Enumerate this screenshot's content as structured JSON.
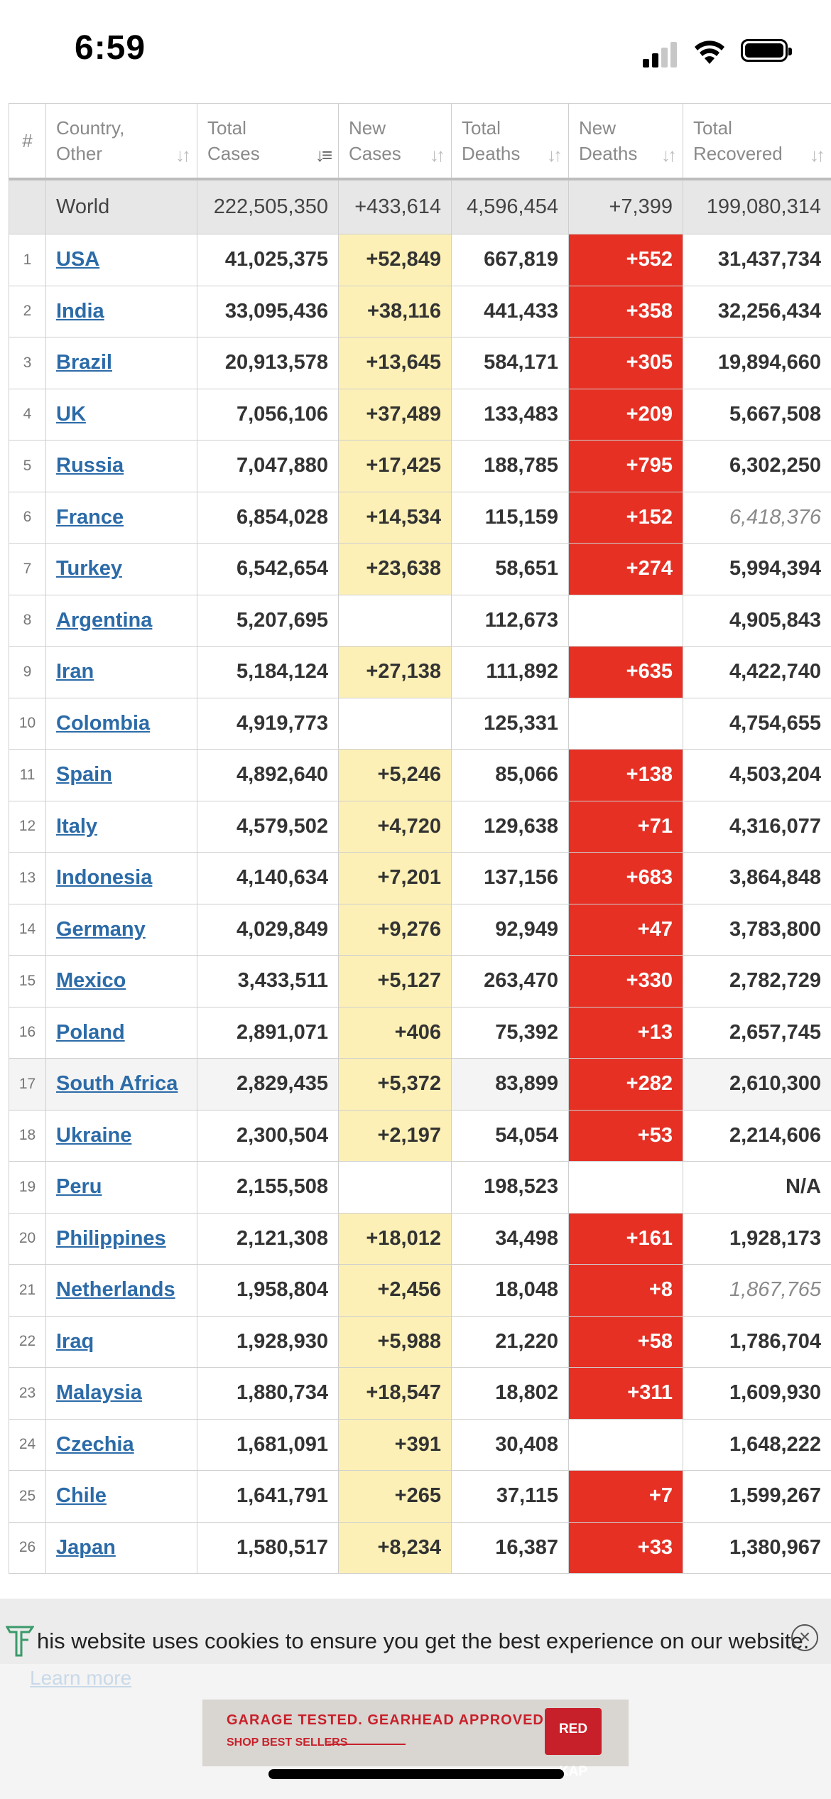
{
  "status_bar": {
    "time": "6:59"
  },
  "table": {
    "headers": {
      "hash": "#",
      "country": [
        "Country,",
        "Other"
      ],
      "total_cases": [
        "Total",
        "Cases"
      ],
      "new_cases": [
        "New",
        "Cases"
      ],
      "total_deaths": [
        "Total",
        "Deaths"
      ],
      "new_deaths": [
        "New",
        "Deaths"
      ],
      "total_recovered": [
        "Total",
        "Recovered"
      ]
    },
    "world": {
      "name": "World",
      "total_cases": "222,505,350",
      "new_cases": "+433,614",
      "total_deaths": "4,596,454",
      "new_deaths": "+7,399",
      "total_recovered": "199,080,314"
    },
    "rows": [
      {
        "rank": "1",
        "country": "USA",
        "total_cases": "41,025,375",
        "new_cases": "+52,849",
        "total_deaths": "667,819",
        "new_deaths": "+552",
        "total_recovered": "31,437,734"
      },
      {
        "rank": "2",
        "country": "India",
        "total_cases": "33,095,436",
        "new_cases": "+38,116",
        "total_deaths": "441,433",
        "new_deaths": "+358",
        "total_recovered": "32,256,434"
      },
      {
        "rank": "3",
        "country": "Brazil",
        "total_cases": "20,913,578",
        "new_cases": "+13,645",
        "total_deaths": "584,171",
        "new_deaths": "+305",
        "total_recovered": "19,894,660"
      },
      {
        "rank": "4",
        "country": "UK",
        "total_cases": "7,056,106",
        "new_cases": "+37,489",
        "total_deaths": "133,483",
        "new_deaths": "+209",
        "total_recovered": "5,667,508"
      },
      {
        "rank": "5",
        "country": "Russia",
        "total_cases": "7,047,880",
        "new_cases": "+17,425",
        "total_deaths": "188,785",
        "new_deaths": "+795",
        "total_recovered": "6,302,250"
      },
      {
        "rank": "6",
        "country": "France",
        "total_cases": "6,854,028",
        "new_cases": "+14,534",
        "total_deaths": "115,159",
        "new_deaths": "+152",
        "total_recovered": "6,418,376",
        "recovered_italic": true
      },
      {
        "rank": "7",
        "country": "Turkey",
        "total_cases": "6,542,654",
        "new_cases": "+23,638",
        "total_deaths": "58,651",
        "new_deaths": "+274",
        "total_recovered": "5,994,394"
      },
      {
        "rank": "8",
        "country": "Argentina",
        "total_cases": "5,207,695",
        "new_cases": "",
        "total_deaths": "112,673",
        "new_deaths": "",
        "total_recovered": "4,905,843"
      },
      {
        "rank": "9",
        "country": "Iran",
        "total_cases": "5,184,124",
        "new_cases": "+27,138",
        "total_deaths": "111,892",
        "new_deaths": "+635",
        "total_recovered": "4,422,740"
      },
      {
        "rank": "10",
        "country": "Colombia",
        "total_cases": "4,919,773",
        "new_cases": "",
        "total_deaths": "125,331",
        "new_deaths": "",
        "total_recovered": "4,754,655"
      },
      {
        "rank": "11",
        "country": "Spain",
        "total_cases": "4,892,640",
        "new_cases": "+5,246",
        "total_deaths": "85,066",
        "new_deaths": "+138",
        "total_recovered": "4,503,204"
      },
      {
        "rank": "12",
        "country": "Italy",
        "total_cases": "4,579,502",
        "new_cases": "+4,720",
        "total_deaths": "129,638",
        "new_deaths": "+71",
        "total_recovered": "4,316,077"
      },
      {
        "rank": "13",
        "country": "Indonesia",
        "total_cases": "4,140,634",
        "new_cases": "+7,201",
        "total_deaths": "137,156",
        "new_deaths": "+683",
        "total_recovered": "3,864,848"
      },
      {
        "rank": "14",
        "country": "Germany",
        "total_cases": "4,029,849",
        "new_cases": "+9,276",
        "total_deaths": "92,949",
        "new_deaths": "+47",
        "total_recovered": "3,783,800"
      },
      {
        "rank": "15",
        "country": "Mexico",
        "total_cases": "3,433,511",
        "new_cases": "+5,127",
        "total_deaths": "263,470",
        "new_deaths": "+330",
        "total_recovered": "2,782,729"
      },
      {
        "rank": "16",
        "country": "Poland",
        "total_cases": "2,891,071",
        "new_cases": "+406",
        "total_deaths": "75,392",
        "new_deaths": "+13",
        "total_recovered": "2,657,745"
      },
      {
        "rank": "17",
        "country": "South Africa",
        "total_cases": "2,829,435",
        "new_cases": "+5,372",
        "total_deaths": "83,899",
        "new_deaths": "+282",
        "total_recovered": "2,610,300",
        "shaded": true
      },
      {
        "rank": "18",
        "country": "Ukraine",
        "total_cases": "2,300,504",
        "new_cases": "+2,197",
        "total_deaths": "54,054",
        "new_deaths": "+53",
        "total_recovered": "2,214,606"
      },
      {
        "rank": "19",
        "country": "Peru",
        "total_cases": "2,155,508",
        "new_cases": "",
        "total_deaths": "198,523",
        "new_deaths": "",
        "total_recovered": "N/A"
      },
      {
        "rank": "20",
        "country": "Philippines",
        "total_cases": "2,121,308",
        "new_cases": "+18,012",
        "total_deaths": "34,498",
        "new_deaths": "+161",
        "total_recovered": "1,928,173"
      },
      {
        "rank": "21",
        "country": "Netherlands",
        "total_cases": "1,958,804",
        "new_cases": "+2,456",
        "total_deaths": "18,048",
        "new_deaths": "+8",
        "total_recovered": "1,867,765",
        "recovered_italic": true
      },
      {
        "rank": "22",
        "country": "Iraq",
        "total_cases": "1,928,930",
        "new_cases": "+5,988",
        "total_deaths": "21,220",
        "new_deaths": "+58",
        "total_recovered": "1,786,704"
      },
      {
        "rank": "23",
        "country": "Malaysia",
        "total_cases": "1,880,734",
        "new_cases": "+18,547",
        "total_deaths": "18,802",
        "new_deaths": "+311",
        "total_recovered": "1,609,930"
      },
      {
        "rank": "24",
        "country": "Czechia",
        "total_cases": "1,681,091",
        "new_cases": "+391",
        "total_deaths": "30,408",
        "new_deaths": "",
        "total_recovered": "1,648,222"
      },
      {
        "rank": "25",
        "country": "Chile",
        "total_cases": "1,641,791",
        "new_cases": "+265",
        "total_deaths": "37,115",
        "new_deaths": "+7",
        "total_recovered": "1,599,267"
      },
      {
        "rank": "26",
        "country": "Japan",
        "total_cases": "1,580,517",
        "new_cases": "+8,234",
        "total_deaths": "16,387",
        "new_deaths": "+33",
        "total_recovered": "1,380,967"
      }
    ]
  },
  "cookie_banner": {
    "text": "his website uses cookies to ensure you get the best experience on our website.",
    "learn_more": "Learn more",
    "close_icon": "circle-x-icon"
  },
  "ad": {
    "line1": "GARAGE TESTED. GEARHEAD APPROVED.",
    "line2": "SHOP BEST SELLERS",
    "logo_text": "RED KAP"
  },
  "colors": {
    "new_cases_bg": "#fcf0b6",
    "new_deaths_bg": "#e63024",
    "link": "#2c6ba8",
    "world_row_bg": "#e7e7e7"
  }
}
